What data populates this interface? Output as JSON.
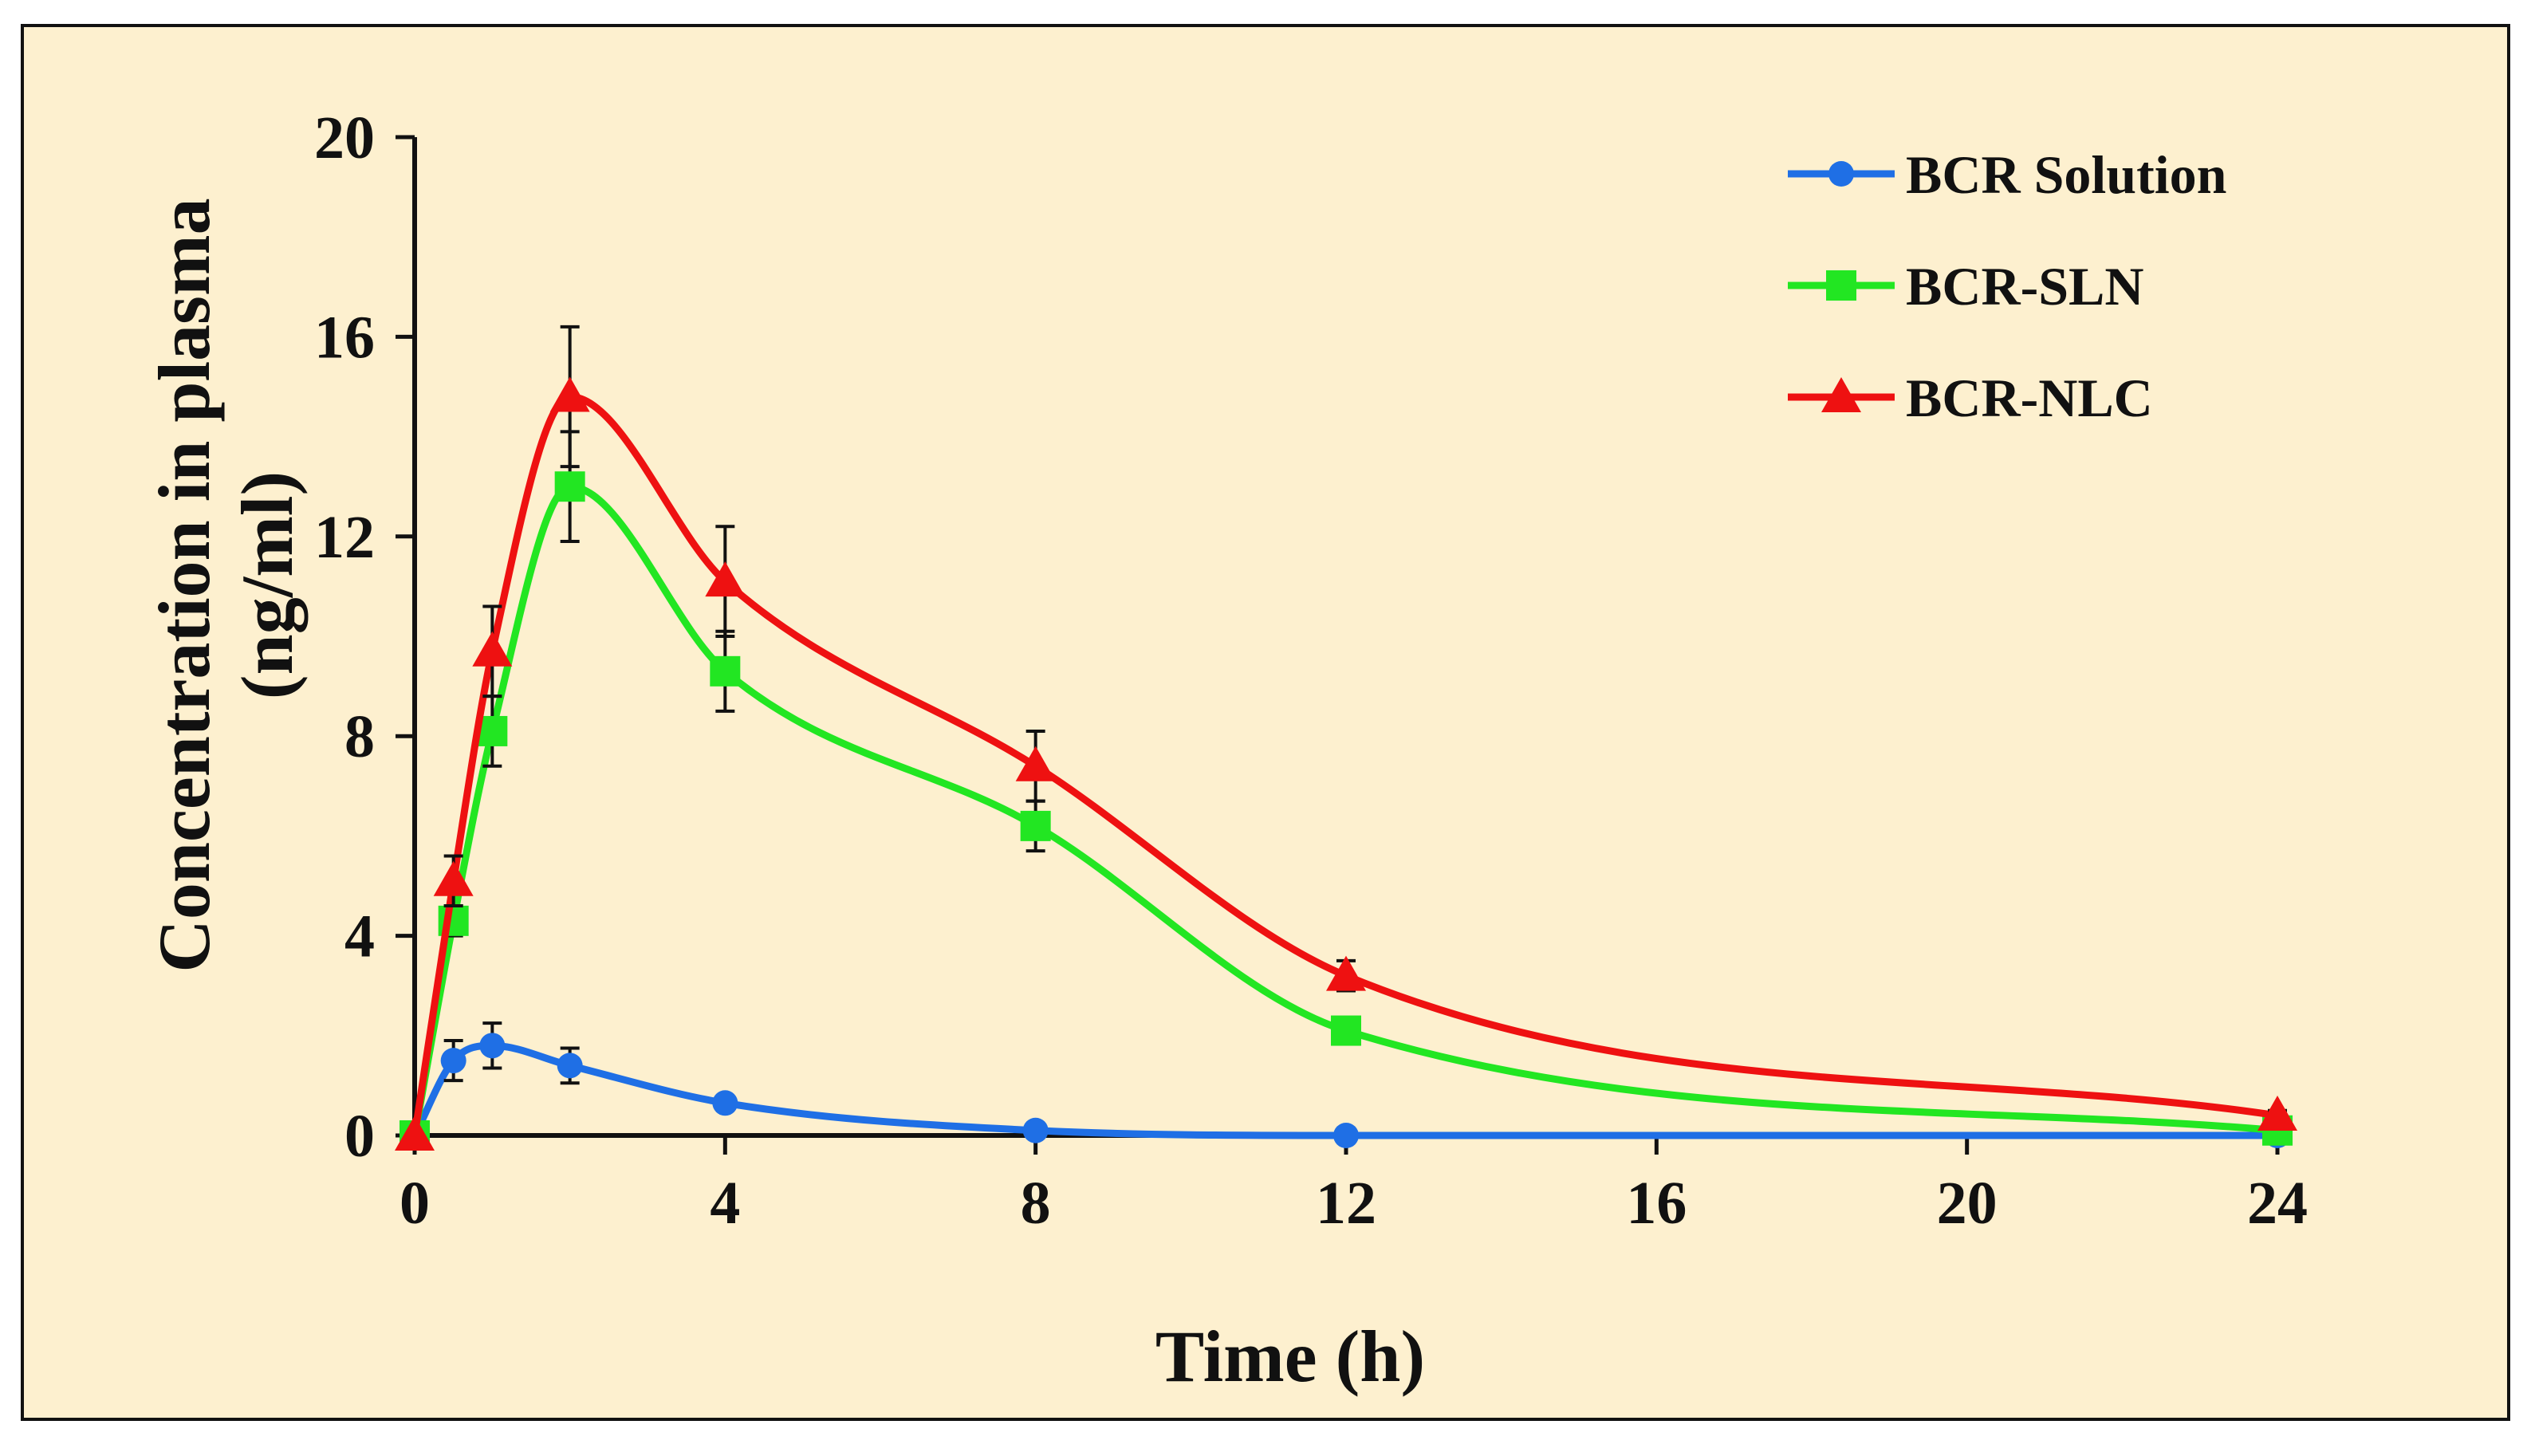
{
  "chart_data": {
    "type": "line",
    "title": "",
    "xlabel": "Time (h)",
    "ylabel_line1": "Concentration in plasma",
    "ylabel_line2": "(ng/ml)",
    "xlim": [
      0,
      24
    ],
    "ylim": [
      0,
      20
    ],
    "xticks": [
      0,
      4,
      8,
      12,
      16,
      20,
      24
    ],
    "yticks": [
      0,
      4,
      8,
      12,
      16,
      20
    ],
    "grid": false,
    "legend_position": "top-right",
    "x": [
      0,
      0.5,
      1,
      2,
      4,
      8,
      12,
      24
    ],
    "series": [
      {
        "name": "BCR Solution",
        "color": "#1f6fe5",
        "marker": "circle",
        "values": [
          0,
          1.5,
          1.8,
          1.4,
          0.65,
          0.1,
          0.0,
          0.0
        ],
        "errors": [
          0,
          0.4,
          0.45,
          0.35,
          0.1,
          0.05,
          0.0,
          0.0
        ]
      },
      {
        "name": "BCR-SLN",
        "color": "#22e622",
        "marker": "square",
        "values": [
          0,
          4.3,
          8.1,
          13.0,
          9.3,
          6.2,
          2.1,
          0.1
        ],
        "errors": [
          0,
          0.3,
          0.7,
          1.1,
          0.8,
          0.5,
          0.15,
          0.05
        ]
      },
      {
        "name": "BCR-NLC",
        "color": "#ee1111",
        "marker": "triangle",
        "values": [
          0,
          5.1,
          9.7,
          14.8,
          11.1,
          7.4,
          3.2,
          0.4
        ],
        "errors": [
          0,
          0.5,
          0.9,
          1.4,
          1.1,
          0.7,
          0.3,
          0.1
        ]
      }
    ]
  }
}
